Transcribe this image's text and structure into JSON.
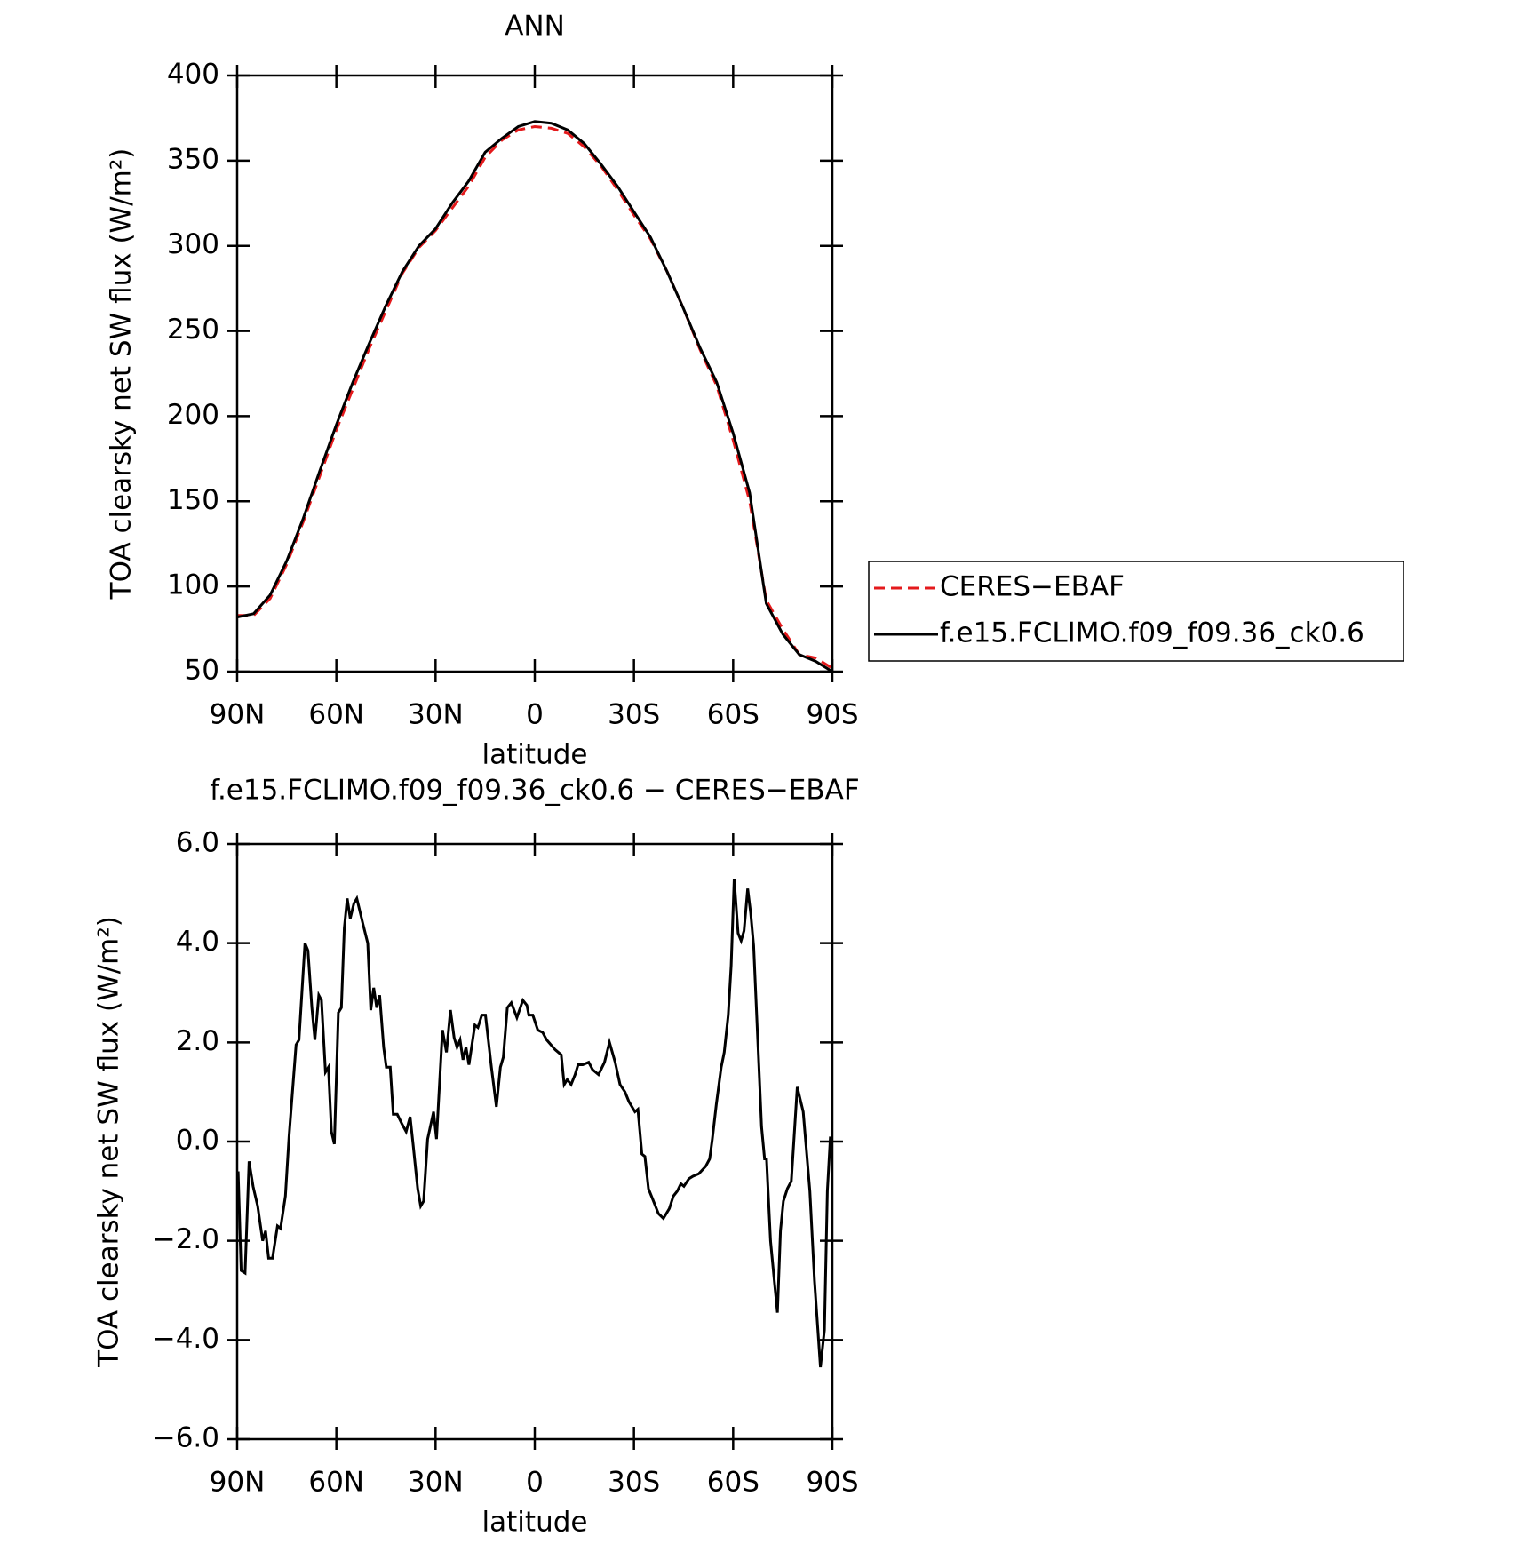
{
  "chart_data": [
    {
      "type": "line",
      "title": "ANN",
      "xlabel": "latitude",
      "ylabel": "TOA clearsky net SW flux (W/m²)",
      "xlim": [
        90,
        -90
      ],
      "xticks": [
        {
          "value": 90,
          "label": "90N"
        },
        {
          "value": 60,
          "label": "60N"
        },
        {
          "value": 30,
          "label": "30N"
        },
        0,
        {
          "value": -30,
          "label": "30S"
        },
        {
          "value": -60,
          "label": "60S"
        },
        {
          "value": -90,
          "label": "90S"
        }
      ],
      "ylim": [
        50,
        400
      ],
      "yticks": [
        50,
        100,
        150,
        200,
        250,
        300,
        350,
        400
      ],
      "legend": "right",
      "x": [
        90,
        85,
        80,
        75,
        70,
        65,
        60,
        55,
        50,
        45,
        40,
        35,
        30,
        25,
        20,
        15,
        10,
        5,
        0,
        -5,
        -10,
        -15,
        -20,
        -25,
        -30,
        -35,
        -40,
        -45,
        -50,
        -55,
        -60,
        -65,
        -70,
        -75,
        -80,
        -85,
        -90
      ],
      "series": [
        {
          "name": "CERES−EBAF",
          "color": "#e41a1c",
          "linestyle": "dashed",
          "values": [
            83,
            83,
            93,
            113,
            138,
            165,
            192,
            216,
            240,
            262,
            284,
            299,
            309,
            322,
            335,
            352,
            362,
            368,
            370,
            369,
            366,
            358,
            347,
            333,
            318,
            304,
            285,
            263,
            239,
            218,
            186,
            150,
            92,
            75,
            60,
            58,
            52
          ]
        },
        {
          "name": "f.e15.FCLIMO.f09_f09.36_ck0.6",
          "color": "#000000",
          "linestyle": "solid",
          "values": [
            82,
            84,
            95,
            115,
            140,
            168,
            195,
            220,
            243,
            265,
            285,
            300,
            310,
            325,
            338,
            355,
            363,
            370,
            373,
            372,
            368,
            360,
            348,
            335,
            320,
            305,
            285,
            263,
            240,
            220,
            190,
            155,
            90,
            72,
            60,
            56,
            50
          ]
        }
      ]
    },
    {
      "type": "line",
      "title": "f.e15.FCLIMO.f09_f09.36_ck0.6 − CERES−EBAF",
      "xlabel": "latitude",
      "ylabel": "TOA clearsky net SW flux (W/m²)",
      "xlim": [
        90,
        -90
      ],
      "xticks": [
        {
          "value": 90,
          "label": "90N"
        },
        {
          "value": 60,
          "label": "60N"
        },
        {
          "value": 30,
          "label": "30N"
        },
        0,
        {
          "value": -30,
          "label": "30S"
        },
        {
          "value": -60,
          "label": "60S"
        },
        {
          "value": -90,
          "label": "90S"
        }
      ],
      "ylim": [
        -6,
        6
      ],
      "yticks": [
        {
          "value": -6,
          "label": "−6.0"
        },
        {
          "value": -4,
          "label": "−4.0"
        },
        {
          "value": -2,
          "label": "−2.0"
        },
        {
          "value": 0,
          "label": "0.0"
        },
        {
          "value": 2,
          "label": "2.0"
        },
        {
          "value": 4,
          "label": "4.0"
        },
        {
          "value": 6,
          "label": "6.0"
        }
      ],
      "x": [
        89.7,
        88.8,
        87.6,
        86.4,
        85.2,
        83.8,
        82.3,
        81.4,
        80.5,
        79.3,
        77.8,
        76.9,
        75.4,
        74.3,
        72.2,
        71.3,
        69.5,
        68.6,
        67.4,
        66.5,
        65.3,
        64.5,
        63.3,
        62.4,
        61.5,
        60.6,
        59.4,
        58.5,
        57.6,
        56.7,
        55.8,
        54.7,
        53.8,
        52.0,
        50.5,
        49.6,
        48.7,
        47.8,
        46.9,
        45.7,
        44.9,
        43.7,
        42.8,
        41.6,
        40.1,
        38.9,
        37.7,
        36.8,
        35.4,
        34.5,
        33.6,
        32.4,
        30.6,
        29.7,
        27.9,
        26.7,
        25.5,
        24.4,
        23.5,
        22.6,
        21.7,
        20.8,
        19.9,
        18.1,
        17.2,
        16.0,
        14.9,
        13.1,
        11.6,
        10.4,
        9.5,
        8.3,
        7.1,
        5.4,
        3.6,
        2.4,
        1.8,
        0.6,
        -0.9,
        -2.4,
        -3.6,
        -6.2,
        -8.0,
        -8.9,
        -9.8,
        -11.0,
        -12.2,
        -13.1,
        -14.5,
        -16.3,
        -17.5,
        -19.3,
        -21.1,
        -22.6,
        -24.3,
        -25.8,
        -27.3,
        -28.5,
        -30.3,
        -31.2,
        -32.4,
        -33.3,
        -34.4,
        -35.6,
        -37.4,
        -38.9,
        -40.7,
        -41.9,
        -43.1,
        -44.2,
        -45.1,
        -46.6,
        -47.8,
        -49.6,
        -51.7,
        -52.9,
        -53.7,
        -54.9,
        -56.4,
        -57.3,
        -58.5,
        -59.4,
        -60.3,
        -61.5,
        -62.4,
        -63.3,
        -64.4,
        -65.3,
        -66.2,
        -68.6,
        -69.5,
        -70.1,
        -71.3,
        -72.5,
        -73.4,
        -74.3,
        -75.2,
        -76.4,
        -77.6,
        -79.4,
        -81.2,
        -83.2,
        -84.6,
        -86.4,
        -87.6,
        -88.5,
        -89.4
      ],
      "series": [
        {
          "color": "#000000",
          "linestyle": "solid",
          "values": [
            -0.6,
            -2.6,
            -2.65,
            -0.4,
            -0.9,
            -1.3,
            -2.0,
            -1.8,
            -2.35,
            -2.35,
            -1.7,
            -1.75,
            -1.1,
            0.1,
            1.95,
            2.05,
            4.0,
            3.85,
            2.7,
            2.05,
            2.95,
            2.85,
            1.4,
            1.5,
            0.2,
            -0.05,
            2.6,
            2.7,
            4.3,
            4.9,
            4.5,
            4.8,
            4.9,
            4.4,
            4.0,
            2.65,
            3.1,
            2.7,
            2.95,
            1.9,
            1.5,
            1.5,
            0.55,
            0.55,
            0.35,
            0.2,
            0.5,
            -0.05,
            -0.95,
            -1.3,
            -1.2,
            0.05,
            0.6,
            0.05,
            2.25,
            1.8,
            2.65,
            2.1,
            1.9,
            2.05,
            1.65,
            1.9,
            1.55,
            2.35,
            2.3,
            2.55,
            2.55,
            1.5,
            0.7,
            1.5,
            1.7,
            2.7,
            2.8,
            2.5,
            2.85,
            2.75,
            2.55,
            2.55,
            2.25,
            2.2,
            2.05,
            1.85,
            1.75,
            1.15,
            1.25,
            1.15,
            1.35,
            1.55,
            1.55,
            1.6,
            1.45,
            1.35,
            1.6,
            2.0,
            1.6,
            1.15,
            1.0,
            0.8,
            0.6,
            0.65,
            -0.25,
            -0.3,
            -0.95,
            -1.15,
            -1.45,
            -1.55,
            -1.35,
            -1.1,
            -1.0,
            -0.85,
            -0.9,
            -0.75,
            -0.7,
            -0.65,
            -0.5,
            -0.35,
            0.05,
            0.75,
            1.5,
            1.8,
            2.55,
            3.55,
            5.3,
            4.2,
            4.05,
            4.25,
            5.1,
            4.6,
            3.95,
            0.3,
            -0.35,
            -0.35,
            -2.0,
            -2.85,
            -3.45,
            -1.8,
            -1.2,
            -0.95,
            -0.8,
            1.1,
            0.6,
            -1.0,
            -2.8,
            -4.55,
            -3.8,
            -1.0,
            0.1
          ]
        }
      ]
    }
  ]
}
